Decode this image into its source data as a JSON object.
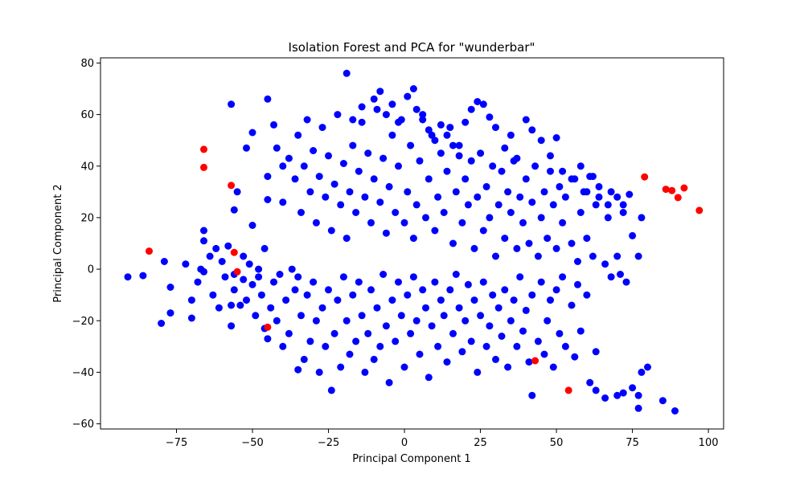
{
  "chart_data": {
    "type": "scatter",
    "title": "Isolation Forest and PCA for \"wunderbar\"",
    "xlabel": "Principal Component 1",
    "ylabel": "Principal Component 2",
    "xlim": [
      -100,
      105
    ],
    "ylim": [
      -62,
      82
    ],
    "xticks": [
      -75,
      -50,
      -25,
      0,
      25,
      50,
      75,
      100
    ],
    "yticks": [
      -60,
      -40,
      -20,
      0,
      20,
      40,
      60,
      80
    ],
    "grid": false,
    "legend": "none",
    "colors": {
      "inlier": "#0000ff",
      "outlier": "#ff0000"
    },
    "series": [
      {
        "color": "#0000ff",
        "points": [
          [
            -91,
            -3
          ],
          [
            -86,
            -2.5
          ],
          [
            -80,
            -21
          ],
          [
            -79,
            3
          ],
          [
            -77,
            -7
          ],
          [
            -77,
            -17
          ],
          [
            -72,
            2
          ],
          [
            -70,
            -19
          ],
          [
            -70,
            -12
          ],
          [
            -68,
            -5
          ],
          [
            -67,
            0
          ],
          [
            -66,
            -1
          ],
          [
            -66,
            11
          ],
          [
            -66,
            15
          ],
          [
            -64,
            5
          ],
          [
            -63,
            -10
          ],
          [
            -62,
            8
          ],
          [
            -61,
            -15
          ],
          [
            -60,
            3
          ],
          [
            -59,
            -3
          ],
          [
            -58,
            9
          ],
          [
            -57,
            -22
          ],
          [
            -57,
            -14
          ],
          [
            -56,
            -2
          ],
          [
            -56,
            23
          ],
          [
            -56,
            -8
          ],
          [
            -55,
            30
          ],
          [
            -54,
            -14
          ],
          [
            -53,
            -4
          ],
          [
            -53,
            5
          ],
          [
            -52,
            -12
          ],
          [
            -51,
            2
          ],
          [
            -50,
            -6
          ],
          [
            -50,
            17
          ],
          [
            -49,
            -18
          ],
          [
            -48,
            -3
          ],
          [
            -48,
            0
          ],
          [
            -47,
            -10
          ],
          [
            -46,
            -23
          ],
          [
            -46,
            8
          ],
          [
            -45,
            36
          ],
          [
            -45,
            -27
          ],
          [
            -44,
            -15
          ],
          [
            -43,
            -5
          ],
          [
            -42,
            -20
          ],
          [
            -41,
            -2
          ],
          [
            -40,
            -30
          ],
          [
            -40,
            40
          ],
          [
            -39,
            -12
          ],
          [
            -38,
            -25
          ],
          [
            -37,
            0
          ],
          [
            -36,
            -8
          ],
          [
            -35,
            -39
          ],
          [
            -35,
            -3
          ],
          [
            -34,
            -18
          ],
          [
            -33,
            -35
          ],
          [
            -32,
            -10
          ],
          [
            -31,
            -28
          ],
          [
            -30,
            -5
          ],
          [
            -29,
            -20
          ],
          [
            -28,
            -40
          ],
          [
            -27,
            -15
          ],
          [
            -26,
            -30
          ],
          [
            -25,
            -8
          ],
          [
            -24,
            -47
          ],
          [
            -23,
            -25
          ],
          [
            -22,
            -12
          ],
          [
            -21,
            -38
          ],
          [
            -20,
            -3
          ],
          [
            -19,
            -20
          ],
          [
            -18,
            -33
          ],
          [
            -17,
            -10
          ],
          [
            -16,
            -28
          ],
          [
            -15,
            -5
          ],
          [
            -14,
            -18
          ],
          [
            -13,
            -40
          ],
          [
            -12,
            -25
          ],
          [
            -11,
            -8
          ],
          [
            -10,
            -35
          ],
          [
            -9,
            -15
          ],
          [
            -8,
            -30
          ],
          [
            -7,
            -2
          ],
          [
            -6,
            -22
          ],
          [
            -5,
            -44
          ],
          [
            -4,
            -12
          ],
          [
            -3,
            -28
          ],
          [
            -2,
            -5
          ],
          [
            -1,
            -18
          ],
          [
            0,
            -38
          ],
          [
            1,
            -10
          ],
          [
            2,
            -25
          ],
          [
            3,
            -3
          ],
          [
            4,
            -20
          ],
          [
            5,
            -33
          ],
          [
            6,
            -8
          ],
          [
            7,
            -15
          ],
          [
            8,
            -42
          ],
          [
            9,
            -22
          ],
          [
            10,
            -5
          ],
          [
            11,
            -30
          ],
          [
            12,
            -12
          ],
          [
            13,
            -18
          ],
          [
            14,
            -36
          ],
          [
            15,
            -8
          ],
          [
            16,
            -25
          ],
          [
            17,
            -2
          ],
          [
            18,
            -15
          ],
          [
            19,
            -32
          ],
          [
            20,
            -20
          ],
          [
            21,
            -6
          ],
          [
            22,
            -28
          ],
          [
            23,
            -12
          ],
          [
            24,
            -40
          ],
          [
            25,
            -18
          ],
          [
            26,
            -5
          ],
          [
            27,
            -30
          ],
          [
            28,
            -22
          ],
          [
            29,
            -10
          ],
          [
            30,
            -35
          ],
          [
            31,
            -15
          ],
          [
            32,
            -26
          ],
          [
            33,
            -8
          ],
          [
            34,
            -38
          ],
          [
            35,
            -20
          ],
          [
            36,
            -12
          ],
          [
            37,
            -30
          ],
          [
            38,
            -3
          ],
          [
            39,
            -24
          ],
          [
            40,
            -16
          ],
          [
            41,
            -36
          ],
          [
            42,
            -10
          ],
          [
            42,
            -49
          ],
          [
            44,
            -28
          ],
          [
            45,
            -5
          ],
          [
            46,
            -33
          ],
          [
            47,
            -20
          ],
          [
            48,
            -12
          ],
          [
            49,
            -38
          ],
          [
            50,
            -8
          ],
          [
            51,
            -25
          ],
          [
            52,
            -3
          ],
          [
            53,
            -30
          ],
          [
            55,
            -14
          ],
          [
            56,
            -34
          ],
          [
            57,
            -6
          ],
          [
            58,
            -24
          ],
          [
            60,
            -10
          ],
          [
            61,
            -44
          ],
          [
            63,
            -32
          ],
          [
            63,
            -47
          ],
          [
            66,
            -50
          ],
          [
            68,
            -3
          ],
          [
            70,
            -49
          ],
          [
            72,
            -48
          ],
          [
            75,
            -46
          ],
          [
            77,
            -49
          ],
          [
            77,
            -54
          ],
          [
            78,
            -40
          ],
          [
            80,
            -38
          ],
          [
            85,
            -51
          ],
          [
            89,
            -55
          ],
          [
            -57,
            64
          ],
          [
            -45,
            66
          ],
          [
            -50,
            53
          ],
          [
            -52,
            47
          ],
          [
            -45,
            27
          ],
          [
            -43,
            56
          ],
          [
            -42,
            47
          ],
          [
            -40,
            26
          ],
          [
            -38,
            43
          ],
          [
            -36,
            35
          ],
          [
            -35,
            52
          ],
          [
            -34,
            22
          ],
          [
            -33,
            40
          ],
          [
            -32,
            58
          ],
          [
            -31,
            30
          ],
          [
            -30,
            46
          ],
          [
            -29,
            18
          ],
          [
            -28,
            36
          ],
          [
            -27,
            55
          ],
          [
            -26,
            28
          ],
          [
            -25,
            44
          ],
          [
            -24,
            15
          ],
          [
            -23,
            33
          ],
          [
            -22,
            60
          ],
          [
            -21,
            25
          ],
          [
            -20,
            41
          ],
          [
            -19,
            12
          ],
          [
            -18,
            30
          ],
          [
            -17,
            48
          ],
          [
            -16,
            22
          ],
          [
            -15,
            38
          ],
          [
            -14,
            57
          ],
          [
            -13,
            28
          ],
          [
            -12,
            45
          ],
          [
            -11,
            18
          ],
          [
            -10,
            35
          ],
          [
            -9,
            62
          ],
          [
            -8,
            26
          ],
          [
            -7,
            43
          ],
          [
            -6,
            14
          ],
          [
            -5,
            32
          ],
          [
            -4,
            52
          ],
          [
            -3,
            22
          ],
          [
            -2,
            40
          ],
          [
            -1,
            58
          ],
          [
            0,
            18
          ],
          [
            1,
            30
          ],
          [
            2,
            48
          ],
          [
            3,
            12
          ],
          [
            4,
            25
          ],
          [
            5,
            42
          ],
          [
            6,
            60
          ],
          [
            7,
            20
          ],
          [
            8,
            35
          ],
          [
            9,
            52
          ],
          [
            10,
            15
          ],
          [
            11,
            28
          ],
          [
            12,
            45
          ],
          [
            13,
            22
          ],
          [
            14,
            38
          ],
          [
            15,
            55
          ],
          [
            16,
            10
          ],
          [
            17,
            30
          ],
          [
            18,
            48
          ],
          [
            19,
            18
          ],
          [
            20,
            35
          ],
          [
            21,
            25
          ],
          [
            22,
            42
          ],
          [
            23,
            8
          ],
          [
            24,
            28
          ],
          [
            25,
            45
          ],
          [
            26,
            15
          ],
          [
            27,
            32
          ],
          [
            28,
            20
          ],
          [
            29,
            40
          ],
          [
            30,
            5
          ],
          [
            31,
            25
          ],
          [
            32,
            38
          ],
          [
            33,
            12
          ],
          [
            34,
            30
          ],
          [
            35,
            22
          ],
          [
            36,
            42
          ],
          [
            37,
            8
          ],
          [
            38,
            28
          ],
          [
            39,
            18
          ],
          [
            40,
            35
          ],
          [
            41,
            10
          ],
          [
            42,
            26
          ],
          [
            43,
            40
          ],
          [
            44,
            5
          ],
          [
            45,
            20
          ],
          [
            46,
            30
          ],
          [
            47,
            12
          ],
          [
            48,
            38
          ],
          [
            49,
            25
          ],
          [
            50,
            8
          ],
          [
            51,
            32
          ],
          [
            52,
            18
          ],
          [
            53,
            28
          ],
          [
            55,
            10
          ],
          [
            56,
            35
          ],
          [
            57,
            3
          ],
          [
            58,
            22
          ],
          [
            59,
            30
          ],
          [
            60,
            12
          ],
          [
            61,
            36
          ],
          [
            62,
            5
          ],
          [
            63,
            25
          ],
          [
            64,
            28
          ],
          [
            66,
            2
          ],
          [
            67,
            20
          ],
          [
            68,
            30
          ],
          [
            70,
            5
          ],
          [
            71,
            -2
          ],
          [
            72,
            25
          ],
          [
            73,
            -5
          ],
          [
            75,
            13
          ],
          [
            77,
            5
          ],
          [
            78,
            20
          ],
          [
            -19,
            76
          ],
          [
            -17,
            58
          ],
          [
            -14,
            63
          ],
          [
            -10,
            66
          ],
          [
            -8,
            69
          ],
          [
            -6,
            60
          ],
          [
            -4,
            64
          ],
          [
            -2,
            57
          ],
          [
            1,
            67
          ],
          [
            3,
            70
          ],
          [
            4,
            62
          ],
          [
            6,
            58
          ],
          [
            8,
            54
          ],
          [
            10,
            50
          ],
          [
            12,
            56
          ],
          [
            14,
            52
          ],
          [
            16,
            48
          ],
          [
            18,
            44
          ],
          [
            20,
            57
          ],
          [
            22,
            62
          ],
          [
            24,
            65
          ],
          [
            26,
            64
          ],
          [
            28,
            59
          ],
          [
            30,
            55
          ],
          [
            33,
            47
          ],
          [
            35,
            52
          ],
          [
            37,
            43
          ],
          [
            40,
            58
          ],
          [
            42,
            54
          ],
          [
            45,
            50
          ],
          [
            48,
            44
          ],
          [
            50,
            51
          ],
          [
            52,
            38
          ],
          [
            55,
            35
          ],
          [
            58,
            40
          ],
          [
            60,
            30
          ],
          [
            62,
            36
          ],
          [
            64,
            32
          ],
          [
            67,
            25
          ],
          [
            70,
            28
          ],
          [
            72,
            22
          ],
          [
            74,
            29
          ]
        ]
      },
      {
        "color": "#ff0000",
        "points": [
          [
            -66,
            46.5
          ],
          [
            -66,
            39.5
          ],
          [
            -57,
            32.5
          ],
          [
            -84,
            7
          ],
          [
            -56,
            6.5
          ],
          [
            -55,
            -1
          ],
          [
            -45,
            -22.5
          ],
          [
            43,
            -35.5
          ],
          [
            54,
            -47
          ],
          [
            79,
            35.8
          ],
          [
            86,
            31
          ],
          [
            88,
            30.5
          ],
          [
            90,
            27.8
          ],
          [
            92,
            31.5
          ],
          [
            97,
            22.8
          ]
        ]
      }
    ]
  }
}
